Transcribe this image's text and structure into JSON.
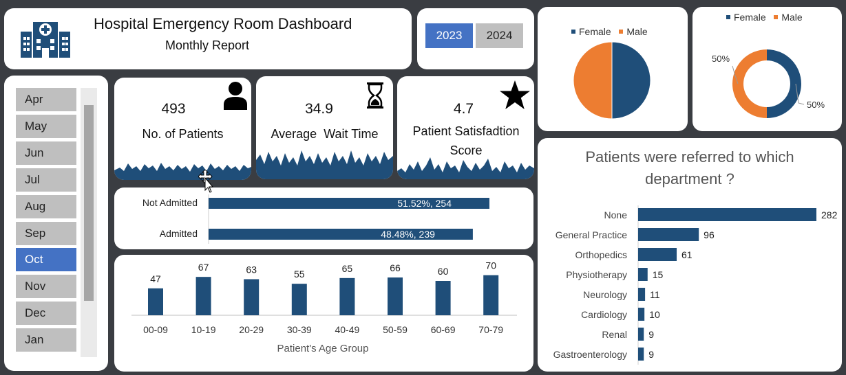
{
  "header": {
    "title": "Hospital Emergency Room Dashboard",
    "subtitle": "Monthly Report",
    "logo_icon": "hospital-icon"
  },
  "years": [
    {
      "label": "2023",
      "active": true
    },
    {
      "label": "2024",
      "active": false
    }
  ],
  "months": [
    {
      "label": "Apr",
      "active": false
    },
    {
      "label": "May",
      "active": false
    },
    {
      "label": "Jun",
      "active": false
    },
    {
      "label": "Jul",
      "active": false
    },
    {
      "label": "Aug",
      "active": false
    },
    {
      "label": "Sep",
      "active": false
    },
    {
      "label": "Oct",
      "active": true
    },
    {
      "label": "Nov",
      "active": false
    },
    {
      "label": "Dec",
      "active": false
    },
    {
      "label": "Jan",
      "active": false
    }
  ],
  "kpis": [
    {
      "value": "493",
      "label": "No. of Patients",
      "icon": "person-icon"
    },
    {
      "value": "34.9",
      "label": "Average  Wait Time",
      "icon": "hourglass-icon"
    },
    {
      "value": "4.7",
      "label": "Patient Satisfadtion Score",
      "icon": "star-icon"
    }
  ],
  "colors": {
    "navy": "#1f4e79",
    "orange": "#ed7d31",
    "accent_blue": "#4472c4",
    "button_grey": "#bfbfbf",
    "background": "#3a3d42"
  },
  "admission": {
    "type": "bar",
    "categories": [
      "Not Admitted",
      "Admitted"
    ],
    "values": [
      254,
      239
    ],
    "percent": [
      51.52,
      48.48
    ],
    "labels": [
      "51.52%, 254",
      "48.48%, 239"
    ]
  },
  "gender_pie": {
    "type": "pie",
    "legend": [
      "Female",
      "Male"
    ],
    "values": [
      50,
      50
    ]
  },
  "gender_donut": {
    "type": "pie",
    "legend": [
      "Female",
      "Male"
    ],
    "values": [
      50,
      50
    ],
    "labels": [
      "50%",
      "50%"
    ]
  },
  "chart_data": [
    {
      "type": "bar",
      "categories": [
        "00-09",
        "10-19",
        "20-29",
        "30-39",
        "40-49",
        "50-59",
        "60-69",
        "70-79"
      ],
      "values": [
        47,
        67,
        63,
        55,
        65,
        66,
        60,
        70
      ],
      "title": "",
      "xlabel": "Patient's Age Group",
      "ylabel": "",
      "ylim": [
        0,
        120
      ]
    },
    {
      "type": "bar",
      "orientation": "horizontal",
      "title": "Patients were referred to which department ?",
      "categories": [
        "None",
        "General Practice",
        "Orthopedics",
        "Physiotherapy",
        "Neurology",
        "Cardiology",
        "Renal",
        "Gastroenterology"
      ],
      "values": [
        282,
        96,
        61,
        15,
        11,
        10,
        9,
        9
      ],
      "xlabel": "",
      "ylabel": "",
      "xlim": [
        0,
        282
      ]
    }
  ]
}
